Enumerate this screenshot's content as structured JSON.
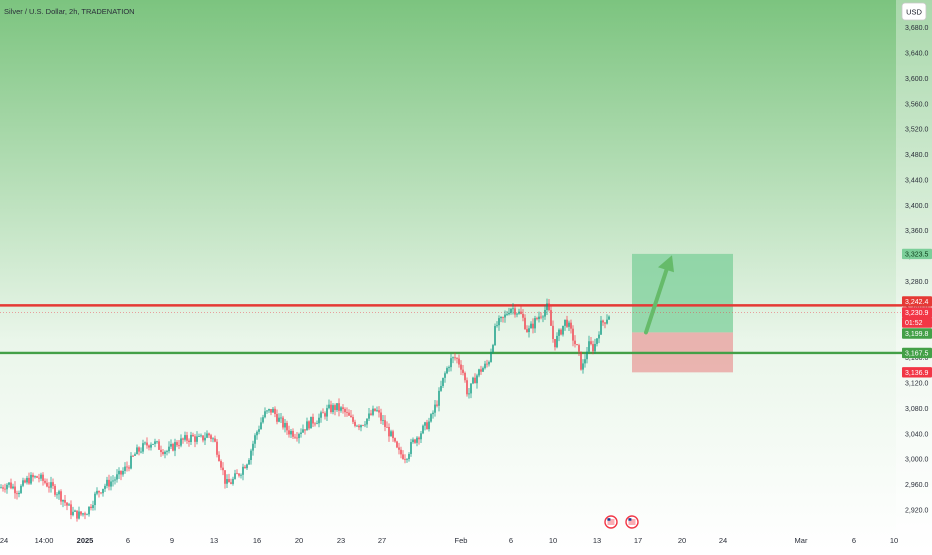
{
  "header": {
    "symbol_line": "Silver / U.S. Dollar, 2h, TRADENATION",
    "currency_button": "USD"
  },
  "colors": {
    "bull": "#089981",
    "bear": "#f23645",
    "resistance_line": "#e53935",
    "support_line": "#43a047",
    "target_zone": "#7ccf9a",
    "stop_zone": "#e8a3a0",
    "arrow": "#66bb6a",
    "background_top": "#7cc47f",
    "background_bottom": "#ffffff"
  },
  "chart_data": {
    "type": "candlestick",
    "title": "Silver / U.S. Dollar, 2h, TRADENATION",
    "ylim": [
      2905,
      3700
    ],
    "y_ticks": [
      2920,
      2960,
      3000,
      3040,
      3080,
      3120,
      3160,
      3200,
      3240,
      3280,
      3320,
      3360,
      3400,
      3440,
      3480,
      3520,
      3560,
      3600,
      3640,
      3680
    ],
    "y_tick_labels": [
      "2,920.0",
      "2,960.0",
      "3,000.0",
      "3,040.0",
      "3,080.0",
      "3,120.0",
      "3,160.0",
      "3,200.0",
      "3,240.0",
      "3,280.0",
      "3,320.0",
      "3,360.0",
      "3,400.0",
      "3,440.0",
      "3,480.0",
      "3,520.0",
      "3,560.0",
      "3,600.0",
      "3,640.0",
      "3,680.0"
    ],
    "x_labels": [
      "24",
      "14:00",
      "2025",
      "6",
      "9",
      "13",
      "16",
      "20",
      "23",
      "27",
      "Feb",
      "6",
      "10",
      "13",
      "17",
      "20",
      "24",
      "Mar",
      "6",
      "10"
    ],
    "x_label_bold": [
      false,
      false,
      true,
      false,
      false,
      false,
      false,
      false,
      false,
      false,
      false,
      false,
      false,
      false,
      false,
      false,
      false,
      false,
      false,
      false
    ],
    "price_path": [
      [
        0,
        2955
      ],
      [
        8,
        2962
      ],
      [
        18,
        2950
      ],
      [
        28,
        2968
      ],
      [
        38,
        2972
      ],
      [
        48,
        2960
      ],
      [
        58,
        2948
      ],
      [
        66,
        2930
      ],
      [
        72,
        2915
      ],
      [
        80,
        2912
      ],
      [
        88,
        2920
      ],
      [
        96,
        2945
      ],
      [
        104,
        2958
      ],
      [
        112,
        2966
      ],
      [
        120,
        2975
      ],
      [
        128,
        2990
      ],
      [
        136,
        3010
      ],
      [
        144,
        3020
      ],
      [
        152,
        3028
      ],
      [
        160,
        3018
      ],
      [
        168,
        3012
      ],
      [
        176,
        3025
      ],
      [
        184,
        3030
      ],
      [
        192,
        3035
      ],
      [
        200,
        3030
      ],
      [
        208,
        3040
      ],
      [
        214,
        3030
      ],
      [
        220,
        3000
      ],
      [
        226,
        2960
      ],
      [
        232,
        2965
      ],
      [
        240,
        2980
      ],
      [
        248,
        3000
      ],
      [
        256,
        3040
      ],
      [
        264,
        3070
      ],
      [
        272,
        3078
      ],
      [
        280,
        3060
      ],
      [
        288,
        3045
      ],
      [
        296,
        3040
      ],
      [
        304,
        3050
      ],
      [
        312,
        3060
      ],
      [
        320,
        3065
      ],
      [
        328,
        3078
      ],
      [
        336,
        3082
      ],
      [
        344,
        3075
      ],
      [
        352,
        3060
      ],
      [
        360,
        3055
      ],
      [
        368,
        3065
      ],
      [
        376,
        3078
      ],
      [
        382,
        3060
      ],
      [
        390,
        3040
      ],
      [
        398,
        3010
      ],
      [
        406,
        3005
      ],
      [
        414,
        3030
      ],
      [
        422,
        3045
      ],
      [
        430,
        3060
      ],
      [
        438,
        3095
      ],
      [
        444,
        3130
      ],
      [
        450,
        3155
      ],
      [
        456,
        3160
      ],
      [
        462,
        3145
      ],
      [
        468,
        3100
      ],
      [
        474,
        3125
      ],
      [
        480,
        3140
      ],
      [
        488,
        3150
      ],
      [
        496,
        3210
      ],
      [
        504,
        3222
      ],
      [
        510,
        3240
      ],
      [
        516,
        3235
      ],
      [
        522,
        3225
      ],
      [
        528,
        3200
      ],
      [
        534,
        3215
      ],
      [
        540,
        3228
      ],
      [
        548,
        3240
      ],
      [
        554,
        3180
      ],
      [
        560,
        3200
      ],
      [
        566,
        3220
      ],
      [
        572,
        3195
      ],
      [
        578,
        3170
      ],
      [
        582,
        3140
      ],
      [
        588,
        3180
      ],
      [
        594,
        3175
      ],
      [
        600,
        3210
      ],
      [
        606,
        3222
      ],
      [
        610,
        3230
      ]
    ],
    "horizontal_levels": [
      {
        "label": "3,242.4",
        "price": 3242.4,
        "kind": "resistance"
      },
      {
        "label": "3,167.5",
        "price": 3167.5,
        "kind": "support"
      }
    ],
    "price_tags": [
      {
        "label": "3,323.5",
        "price": 3323.5,
        "kind": "target"
      },
      {
        "label": "3,242.4",
        "price": 3242.4,
        "kind": "resistance"
      },
      {
        "label": "3,230.9",
        "price": 3230.9,
        "kind": "last"
      },
      {
        "label": "01:52",
        "price": 3219,
        "kind": "countdown"
      },
      {
        "label": "3,199.8",
        "price": 3199.8,
        "kind": "entry"
      },
      {
        "label": "3,167.5",
        "price": 3167.5,
        "kind": "support"
      },
      {
        "label": "3,136.9",
        "price": 3136.9,
        "kind": "stop"
      }
    ],
    "position": {
      "entry": 3199.8,
      "target": 3323.5,
      "stop": 3136.9
    },
    "grid": false
  }
}
